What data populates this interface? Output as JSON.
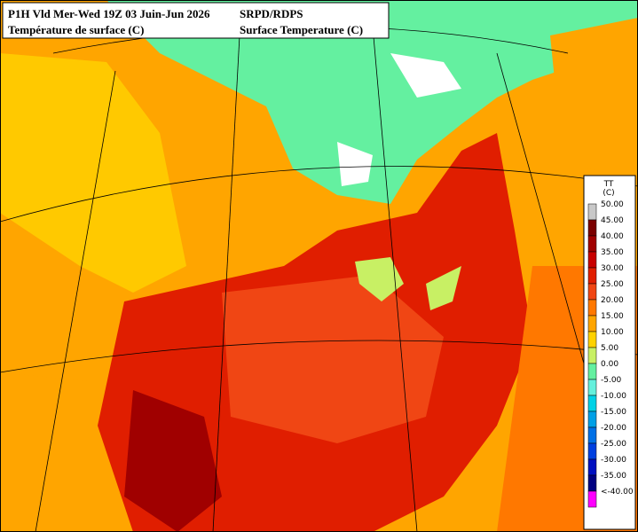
{
  "header": {
    "left_line1": "P1H Vld Mer-Wed 19Z 03 Juin-Jun 2026",
    "left_line2": "Température de surface (C)",
    "right_line1": "SRPD/RDPS",
    "right_line2": "Surface Temperature (C)"
  },
  "legend": {
    "title": "TT",
    "unit": "(C)",
    "items": [
      {
        "label": "50.00",
        "color": "#c8c8c8"
      },
      {
        "label": "45.00",
        "color": "#7a0000"
      },
      {
        "label": "40.00",
        "color": "#a00000"
      },
      {
        "label": "35.00",
        "color": "#c80000"
      },
      {
        "label": "30.00",
        "color": "#e01e00"
      },
      {
        "label": "25.00",
        "color": "#f04614"
      },
      {
        "label": "20.00",
        "color": "#ff7800"
      },
      {
        "label": "15.00",
        "color": "#ffa500"
      },
      {
        "label": "10.00",
        "color": "#ffd200"
      },
      {
        "label": "5.00",
        "color": "#c8f064"
      },
      {
        "label": "0.00",
        "color": "#64f0a0"
      },
      {
        "label": "-5.00",
        "color": "#64f0dc"
      },
      {
        "label": "-10.00",
        "color": "#00d2e6"
      },
      {
        "label": "-15.00",
        "color": "#00a0e6"
      },
      {
        "label": "-20.00",
        "color": "#0070e6"
      },
      {
        "label": "-25.00",
        "color": "#0040e0"
      },
      {
        "label": "-30.00",
        "color": "#0010c0"
      },
      {
        "label": "-35.00",
        "color": "#000080"
      },
      {
        "label": "<-40.00",
        "color": "#ff00ff"
      }
    ]
  }
}
